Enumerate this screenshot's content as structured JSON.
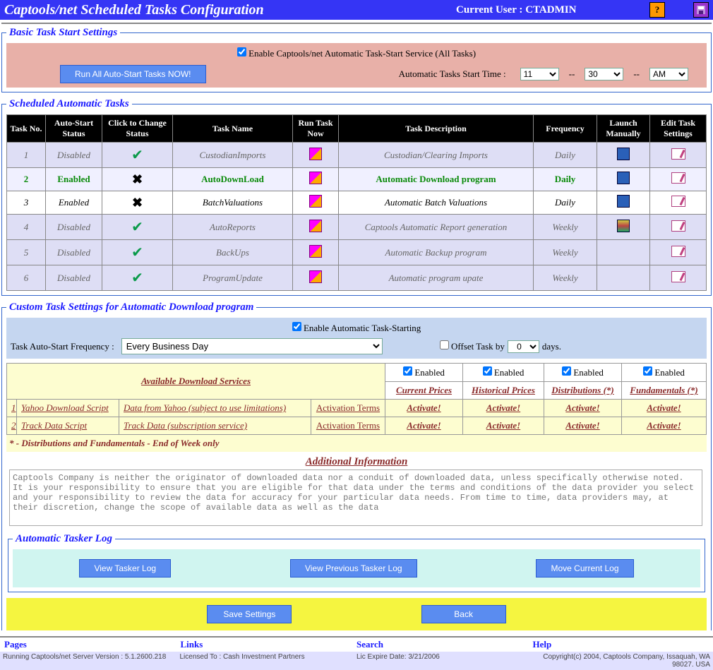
{
  "header": {
    "title": "Captools/net Scheduled Tasks Configuration",
    "current_user_label": "Current User : ",
    "current_user": "CTADMIN"
  },
  "basic": {
    "legend": "Basic Task Start Settings",
    "enable_label": "Enable Captools/net Automatic Task-Start Service (All Tasks)",
    "run_now_btn": "Run All Auto-Start Tasks NOW!",
    "start_time_label": "Automatic Tasks Start Time :",
    "hour": "11",
    "minute": "30",
    "ampm": "AM"
  },
  "tasks": {
    "legend": "Scheduled Automatic Tasks",
    "headers": [
      "Task No.",
      "Auto-Start Status",
      "Click to Change Status",
      "Task Name",
      "Run Task Now",
      "Task Description",
      "Frequency",
      "Launch Manually",
      "Edit Task Settings"
    ],
    "rows": [
      {
        "no": "1",
        "status": "Disabled",
        "chk": true,
        "name": "CustodianImports",
        "desc": "Custodian/Clearing Imports",
        "freq": "Daily",
        "launch": true,
        "cls": "r-dis"
      },
      {
        "no": "2",
        "status": "Enabled",
        "chk": false,
        "name": "AutoDownLoad",
        "desc": "Automatic Download program",
        "freq": "Daily",
        "launch": true,
        "cls": "r-hl"
      },
      {
        "no": "3",
        "status": "Enabled",
        "chk": false,
        "name": "BatchValuations",
        "desc": "Automatic Batch Valuations",
        "freq": "Daily",
        "launch": true,
        "cls": "r-en"
      },
      {
        "no": "4",
        "status": "Disabled",
        "chk": true,
        "name": "AutoReports",
        "desc": "Captools Automatic Report generation",
        "freq": "Weekly",
        "launch": true,
        "launchCol": true,
        "cls": "r-dis"
      },
      {
        "no": "5",
        "status": "Disabled",
        "chk": true,
        "name": "BackUps",
        "desc": "Automatic Backup program",
        "freq": "Weekly",
        "launch": false,
        "cls": "r-dis"
      },
      {
        "no": "6",
        "status": "Disabled",
        "chk": true,
        "name": "ProgramUpdate",
        "desc": "Automatic program upate",
        "freq": "Weekly",
        "launch": false,
        "cls": "r-dis"
      }
    ]
  },
  "custom": {
    "legend": "Custom Task Settings for Automatic Download program",
    "enable_label": "Enable Automatic Task-Starting",
    "freq_label": "Task Auto-Start Frequency :",
    "freq_value": "Every Business Day",
    "offset_label": "Offset Task by",
    "offset_value": "0",
    "offset_days": "days."
  },
  "downloads": {
    "avail_label": "Available Download Services",
    "enabled_label": "Enabled",
    "cols": [
      "Current Prices",
      "Historical Prices",
      "Distributions (*)",
      "Fundamentals (*)"
    ],
    "rows": [
      {
        "n": "1",
        "name": "Yahoo Download Script",
        "desc": "Data from Yahoo (subject to use limitations)",
        "terms": "Activation Terms"
      },
      {
        "n": "2",
        "name": "Track Data Script",
        "desc": "Track Data (subscription service)",
        "terms": "Activation Terms"
      }
    ],
    "activate_label": "Activate!",
    "footnote": "* - Distributions and Fundamentals - End of Week only"
  },
  "addl": {
    "header": "Additional Information",
    "text": "Captools Company is neither the originator of downloaded data nor a conduit of downloaded data, unless specifically otherwise noted. It is your responsibility to ensure that you are eligible for that data under the terms and conditions of the data provider you select and your responsibility to review the data for accuracy for your particular data needs. From time to time, data providers may, at their discretion, change the scope of available data as well as the data"
  },
  "tasker_log": {
    "legend": "Automatic Tasker Log",
    "view_btn": "View Tasker Log",
    "prev_btn": "View Previous Tasker Log",
    "move_btn": "Move Current Log"
  },
  "bottom": {
    "save_btn": "Save Settings",
    "back_btn": "Back"
  },
  "nav": {
    "pages": "Pages",
    "links": "Links",
    "search": "Search",
    "help": "Help"
  },
  "status": {
    "version": "Running Captools/net Server Version : 5.1.2600.218",
    "licensed": "Licensed To : Cash Investment Partners",
    "expire": "Lic Expire Date: 3/21/2006",
    "copyright": "Copyright(c) 2004, Captools Company, Issaquah, WA 98027. USA"
  }
}
